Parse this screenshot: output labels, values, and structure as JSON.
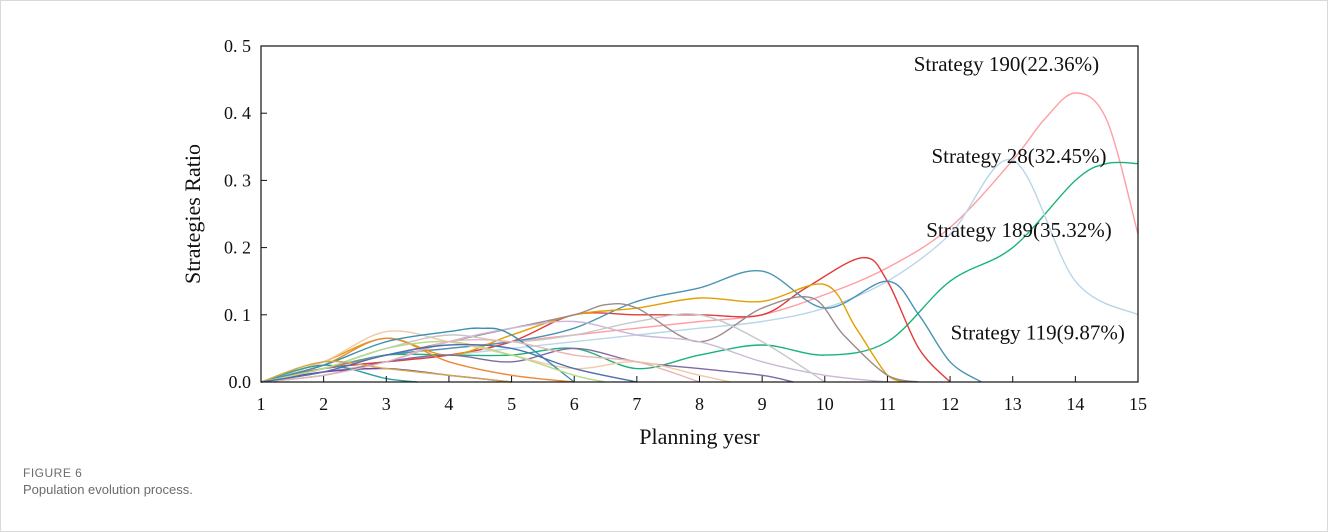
{
  "chart_data": {
    "type": "line",
    "title": "",
    "xlabel": "Planning yesr",
    "ylabel": "Strategies Ratio",
    "xlim": [
      1,
      15
    ],
    "ylim": [
      0,
      0.5
    ],
    "x_ticks": [
      "1",
      "2",
      "3",
      "4",
      "5",
      "6",
      "7",
      "8",
      "9",
      "10",
      "11",
      "12",
      "13",
      "14",
      "15"
    ],
    "y_ticks": [
      "0.0",
      "0. 1",
      "0. 2",
      "0. 3",
      "0. 4",
      "0. 5"
    ],
    "grid": false,
    "annotations": [
      {
        "text": "Strategy 190(22.36%)",
        "x": 12.9,
        "y": 0.463
      },
      {
        "text": "Strategy 28(32.45%)",
        "x": 13.1,
        "y": 0.326
      },
      {
        "text": "Strategy 189(35.32%)",
        "x": 13.1,
        "y": 0.216
      },
      {
        "text": "Strategy 119(9.87%)",
        "x": 13.4,
        "y": 0.063
      }
    ],
    "series": [
      {
        "color": "#ff9ea3",
        "x": [
          1,
          2,
          3,
          4,
          5,
          6,
          7,
          8,
          9,
          10,
          11,
          12,
          13,
          13.5,
          14,
          14.5,
          15
        ],
        "y": [
          0,
          0.02,
          0.04,
          0.05,
          0.06,
          0.07,
          0.08,
          0.09,
          0.1,
          0.13,
          0.17,
          0.23,
          0.33,
          0.39,
          0.43,
          0.39,
          0.22
        ]
      },
      {
        "color": "#19b379",
        "x": [
          1,
          2,
          3,
          4,
          5,
          6,
          7,
          8,
          9,
          10,
          11,
          12,
          13,
          14,
          14.5,
          15
        ],
        "y": [
          0,
          0.02,
          0.04,
          0.04,
          0.04,
          0.05,
          0.02,
          0.04,
          0.055,
          0.04,
          0.06,
          0.15,
          0.2,
          0.3,
          0.325,
          0.325
        ]
      },
      {
        "color": "#b9d6ea",
        "x": [
          1,
          2,
          3,
          4,
          5,
          6,
          7,
          8,
          9,
          10,
          11,
          12,
          13,
          14,
          15
        ],
        "y": [
          0,
          0.02,
          0.03,
          0.04,
          0.05,
          0.06,
          0.07,
          0.08,
          0.09,
          0.11,
          0.15,
          0.22,
          0.33,
          0.15,
          0.1
        ]
      },
      {
        "color": "#e23b3b",
        "x": [
          1,
          2,
          3,
          4,
          5,
          6,
          7,
          8,
          9,
          9.7,
          10.6,
          11,
          11.5,
          12
        ],
        "y": [
          0,
          0.02,
          0.03,
          0.04,
          0.06,
          0.1,
          0.1,
          0.1,
          0.1,
          0.14,
          0.185,
          0.15,
          0.05,
          0
        ]
      },
      {
        "color": "#4a93b3",
        "x": [
          1,
          2,
          3,
          4,
          5,
          6,
          7,
          8,
          9,
          10,
          11,
          11.5,
          12,
          12.5
        ],
        "y": [
          0,
          0.02,
          0.04,
          0.05,
          0.06,
          0.08,
          0.12,
          0.14,
          0.165,
          0.11,
          0.15,
          0.1,
          0.03,
          0
        ]
      },
      {
        "color": "#e0a000",
        "x": [
          1,
          2,
          3,
          4,
          5,
          6,
          7,
          8,
          9,
          10,
          10.5,
          11,
          11.3
        ],
        "y": [
          0,
          0.03,
          0.065,
          0.04,
          0.07,
          0.1,
          0.11,
          0.125,
          0.12,
          0.145,
          0.08,
          0.01,
          0
        ]
      },
      {
        "color": "#9c8a8a",
        "x": [
          1,
          2,
          3,
          4,
          5,
          6,
          6.5,
          7,
          8,
          9,
          9.8,
          10.3,
          11,
          11.5
        ],
        "y": [
          0,
          0.02,
          0.04,
          0.06,
          0.08,
          0.1,
          0.115,
          0.11,
          0.06,
          0.11,
          0.125,
          0.07,
          0.01,
          0
        ]
      },
      {
        "color": "#cbb7d8",
        "x": [
          1,
          2,
          3,
          4,
          5,
          6,
          7,
          8,
          9,
          10,
          11
        ],
        "y": [
          0,
          0.015,
          0.03,
          0.06,
          0.08,
          0.09,
          0.07,
          0.06,
          0.03,
          0.01,
          0
        ]
      },
      {
        "color": "#7f6aa6",
        "x": [
          1,
          2,
          3,
          4,
          5,
          6,
          7,
          8,
          9,
          9.5
        ],
        "y": [
          0,
          0.01,
          0.03,
          0.04,
          0.03,
          0.05,
          0.03,
          0.02,
          0.01,
          0
        ]
      },
      {
        "color": "#f1c9a5",
        "x": [
          1,
          2,
          3,
          4,
          5,
          6,
          7,
          8,
          8.5
        ],
        "y": [
          0,
          0.03,
          0.075,
          0.06,
          0.04,
          0.02,
          0.03,
          0.01,
          0
        ]
      },
      {
        "color": "#c7c7c7",
        "x": [
          1,
          2,
          3,
          4,
          5,
          6,
          7,
          8,
          9,
          10
        ],
        "y": [
          0,
          0.02,
          0.05,
          0.07,
          0.06,
          0.07,
          0.09,
          0.1,
          0.06,
          0
        ]
      },
      {
        "color": "#e98a3b",
        "x": [
          1,
          2,
          3,
          4,
          5,
          6
        ],
        "y": [
          0,
          0.025,
          0.065,
          0.03,
          0.01,
          0
        ]
      },
      {
        "color": "#3a8fb5",
        "x": [
          1,
          2,
          3,
          4,
          4.5,
          5,
          6
        ],
        "y": [
          0,
          0.025,
          0.06,
          0.075,
          0.08,
          0.07,
          0
        ]
      },
      {
        "color": "#6b4a9c",
        "x": [
          1,
          2,
          3,
          4,
          4.5,
          5
        ],
        "y": [
          0,
          0.015,
          0.02,
          0.01,
          0.005,
          0
        ]
      },
      {
        "color": "#2f9e9e",
        "x": [
          1,
          2,
          3,
          3.5
        ],
        "y": [
          0,
          0.025,
          0.005,
          0
        ]
      },
      {
        "color": "#b8d98a",
        "x": [
          1,
          2,
          3,
          4,
          5,
          6,
          6.5
        ],
        "y": [
          0,
          0.02,
          0.05,
          0.06,
          0.04,
          0.01,
          0
        ]
      },
      {
        "color": "#d4a64a",
        "x": [
          1,
          2,
          3,
          4,
          5
        ],
        "y": [
          0,
          0.03,
          0.02,
          0.01,
          0
        ]
      },
      {
        "color": "#e8b6b6",
        "x": [
          1,
          2,
          3,
          4,
          5,
          6,
          7,
          8
        ],
        "y": [
          0,
          0.01,
          0.03,
          0.06,
          0.06,
          0.04,
          0.03,
          0
        ]
      },
      {
        "color": "#4b6fb0",
        "x": [
          1,
          2,
          3,
          4,
          5,
          6,
          7
        ],
        "y": [
          0,
          0.015,
          0.04,
          0.055,
          0.05,
          0.02,
          0
        ]
      }
    ]
  },
  "caption": {
    "label": "FIGURE 6",
    "text": "Population evolution process."
  }
}
